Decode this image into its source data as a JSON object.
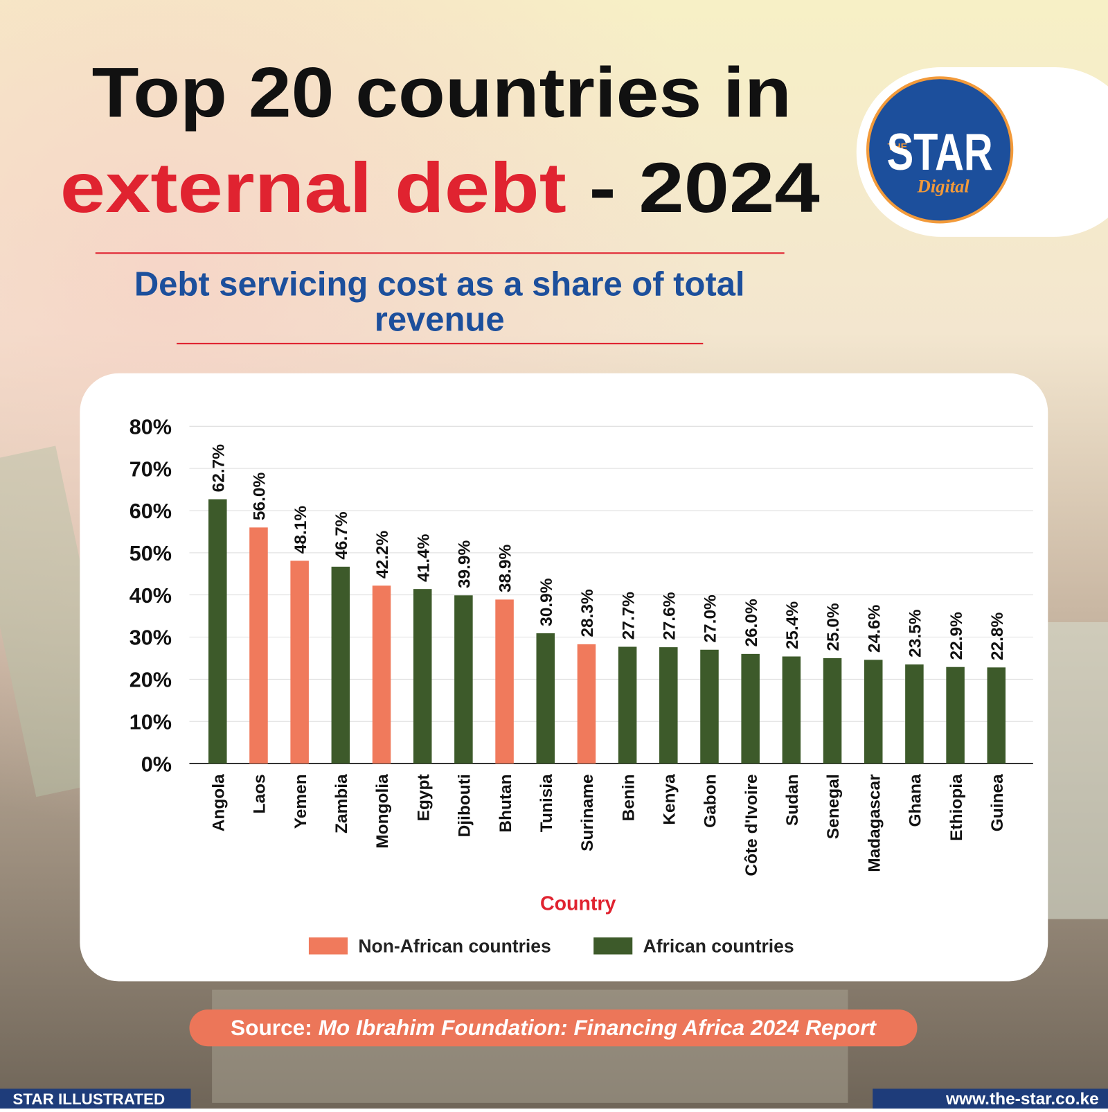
{
  "header": {
    "title_line1": "Top 20 countries in",
    "title_highlight": "external debt",
    "title_rest": " - 2024",
    "subtitle_lines": [
      "Debt servicing cost as a share of total",
      "revenue"
    ]
  },
  "logo": {
    "the": "THE",
    "star": "STAR",
    "digital": "Digital"
  },
  "chart_data": {
    "type": "bar",
    "x_label": "Country",
    "categories": [
      "Angola",
      "Laos",
      "Yemen",
      "Zambia",
      "Mongolia",
      "Egypt",
      "Djibouti",
      "Bhutan",
      "Tunisia",
      "Suriname",
      "Benin",
      "Kenya",
      "Gabon",
      "Côte d'Ivoire",
      "Sudan",
      "Senegal",
      "Madagascar",
      "Ghana",
      "Ethiopia",
      "Guinea"
    ],
    "series": [
      {
        "name": "Non-African countries",
        "color": "#f07a5c",
        "values": [
          null,
          56.0,
          48.1,
          null,
          42.2,
          null,
          null,
          38.9,
          null,
          28.3,
          null,
          null,
          null,
          null,
          null,
          null,
          null,
          null,
          null,
          null
        ],
        "value_labels": [
          null,
          "56.0%",
          "48.1%",
          null,
          "42.2%",
          null,
          null,
          "38.9%",
          null,
          "28.3%",
          null,
          null,
          null,
          null,
          null,
          null,
          null,
          null,
          null,
          null
        ]
      },
      {
        "name": "African countries",
        "color": "#3d5a2a",
        "values": [
          62.7,
          null,
          null,
          46.7,
          null,
          41.4,
          39.9,
          null,
          30.9,
          null,
          27.7,
          27.6,
          27.0,
          26.0,
          25.4,
          25.0,
          24.6,
          23.5,
          22.9,
          22.8
        ],
        "value_labels": [
          "62.7%",
          null,
          null,
          "46.7%",
          null,
          "41.4%",
          "39.9%",
          null,
          "30.9%",
          null,
          "27.7%",
          "27.6%",
          "27.0%",
          "26.0%",
          "25.4%",
          "25.0%",
          "24.6%",
          "23.5%",
          "22.9%",
          "22.8%"
        ]
      }
    ],
    "ylim": [
      0,
      80
    ],
    "yticks": [
      {
        "value": 0,
        "label": "0%"
      },
      {
        "value": 10,
        "label": "10%"
      },
      {
        "value": 20,
        "label": "20%"
      },
      {
        "value": 30,
        "label": "30%"
      },
      {
        "value": 40,
        "label": "40%"
      },
      {
        "value": 50,
        "label": "50%"
      },
      {
        "value": 60,
        "label": "60%"
      },
      {
        "value": 70,
        "label": "70%"
      },
      {
        "value": 80,
        "label": "80%"
      }
    ],
    "grid": true,
    "legend": "bottom"
  },
  "source": {
    "label": "Source:",
    "text": "Mo Ibrahim Foundation: Financing Africa 2024 Report"
  },
  "footer": {
    "left": "STAR ILLUSTRATED",
    "right": "www.the-star.co.ke"
  }
}
